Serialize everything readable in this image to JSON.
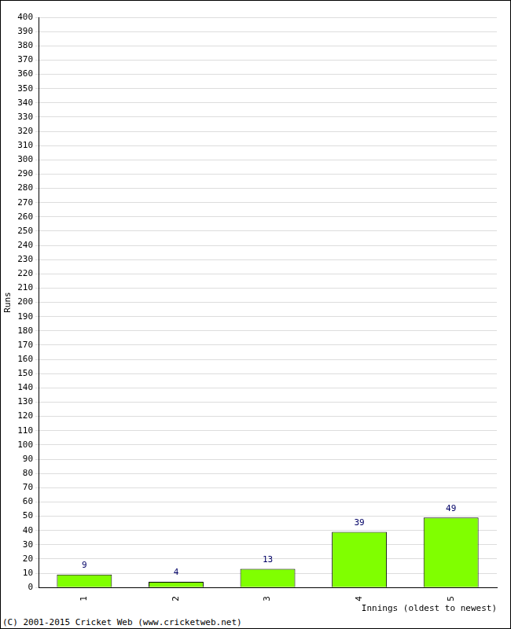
{
  "chart_data": {
    "type": "bar",
    "categories": [
      "1",
      "2",
      "3",
      "4",
      "5"
    ],
    "values": [
      9,
      4,
      13,
      39,
      49
    ],
    "color": "#80ff00",
    "xlabel": "Innings (oldest to newest)",
    "ylabel": "Runs",
    "ylim": [
      0,
      400
    ],
    "yticks": [
      0,
      10,
      20,
      30,
      40,
      50,
      60,
      70,
      80,
      90,
      100,
      110,
      120,
      130,
      140,
      150,
      160,
      170,
      180,
      190,
      200,
      210,
      220,
      230,
      240,
      250,
      260,
      270,
      280,
      290,
      300,
      310,
      320,
      330,
      340,
      350,
      360,
      370,
      380,
      390,
      400
    ],
    "grid": true,
    "data_labels": true,
    "annotations": [
      "(C) 2001-2015 Cricket Web (www.cricketweb.net)"
    ]
  }
}
